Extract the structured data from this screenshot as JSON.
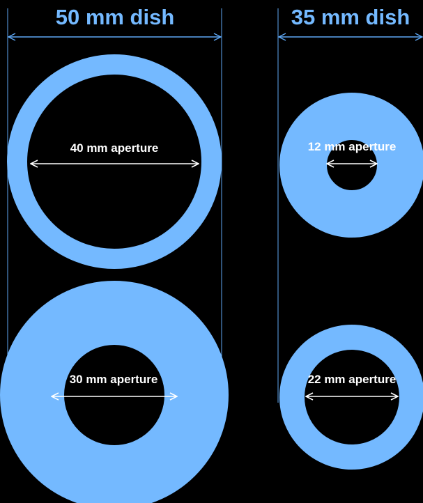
{
  "colors": {
    "background": "#000000",
    "ring": "#74B9FF",
    "accent_line": "#5FA8F5",
    "arrow": "#FFFFFF",
    "label_text": "#FFFFFF"
  },
  "dishes": [
    {
      "title": "50 mm dish",
      "dish_diameter_mm": 50,
      "apertures": [
        {
          "label": "40 mm aperture",
          "aperture_mm": 40
        },
        {
          "label": "30 mm aperture",
          "aperture_mm": 30
        }
      ]
    },
    {
      "title": "35 mm dish",
      "dish_diameter_mm": 35,
      "apertures": [
        {
          "label": "12 mm aperture",
          "aperture_mm": 12
        },
        {
          "label": "22 mm aperture",
          "aperture_mm": 22
        }
      ]
    }
  ]
}
